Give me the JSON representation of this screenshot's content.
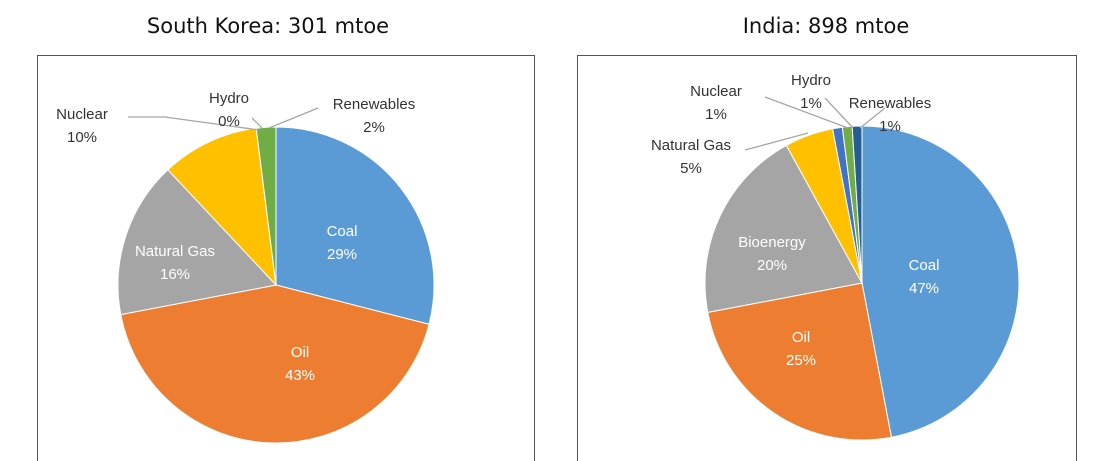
{
  "chart_data": [
    {
      "type": "pie",
      "title": "South Korea: 301 mtoe",
      "categories": [
        "Coal",
        "Oil",
        "Natural Gas",
        "Nuclear",
        "Hydro",
        "Renewables"
      ],
      "values": [
        29,
        43,
        16,
        10,
        0,
        2
      ],
      "value_labels": [
        "29%",
        "43%",
        "16%",
        "10%",
        "0%",
        "2%"
      ],
      "colors": [
        "#5b9bd5",
        "#ed7d31",
        "#a5a5a5",
        "#ffc000",
        "#4472c4",
        "#70ad47"
      ]
    },
    {
      "type": "pie",
      "title": "India: 898 mtoe",
      "categories": [
        "Coal",
        "Oil",
        "Bioenergy",
        "Natural Gas",
        "Nuclear",
        "Hydro",
        "Renewables"
      ],
      "values": [
        47,
        25,
        20,
        5,
        1,
        1,
        1
      ],
      "value_labels": [
        "47%",
        "25%",
        "20%",
        "5%",
        "1%",
        "1%",
        "1%"
      ],
      "colors": [
        "#5b9bd5",
        "#ed7d31",
        "#a5a5a5",
        "#ffc000",
        "#4472c4",
        "#70ad47",
        "#255e91"
      ]
    }
  ]
}
